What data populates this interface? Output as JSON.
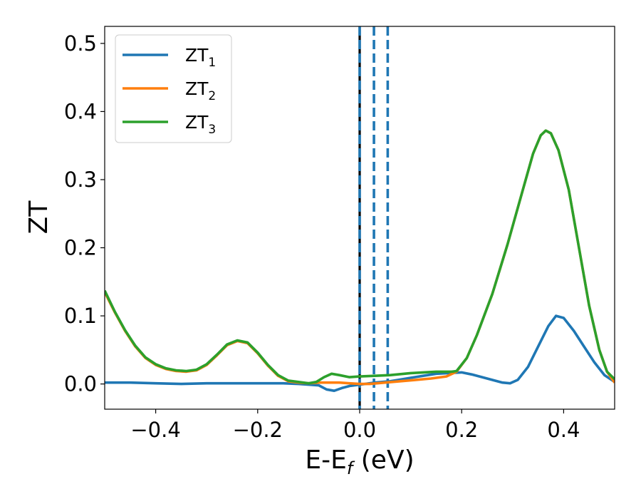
{
  "chart_data": {
    "type": "line",
    "title": "",
    "xlabel": {
      "main": "E-E",
      "sub": "f",
      "suffix": " (eV)"
    },
    "ylabel": "ZT",
    "xlim": [
      -0.5,
      0.5
    ],
    "ylim": [
      -0.037,
      0.525
    ],
    "xticks": [
      -0.4,
      -0.2,
      0.0,
      0.2,
      0.4
    ],
    "xtick_labels": [
      "−0.4",
      "−0.2",
      "0.0",
      "0.2",
      "0.4"
    ],
    "yticks": [
      0.0,
      0.1,
      0.2,
      0.3,
      0.4,
      0.5
    ],
    "ytick_labels": [
      "0.0",
      "0.1",
      "0.2",
      "0.3",
      "0.4",
      "0.5"
    ],
    "grid": false,
    "legend_position": "top-left",
    "series": [
      {
        "name": "ZT",
        "name_sub": "1",
        "color": "#1f77b4",
        "points": [
          [
            -0.5,
            0.002
          ],
          [
            -0.45,
            0.002
          ],
          [
            -0.4,
            0.001
          ],
          [
            -0.35,
            0.0
          ],
          [
            -0.3,
            0.001
          ],
          [
            -0.25,
            0.001
          ],
          [
            -0.2,
            0.001
          ],
          [
            -0.15,
            0.001
          ],
          [
            -0.12,
            0.0
          ],
          [
            -0.1,
            -0.001
          ],
          [
            -0.08,
            -0.002
          ],
          [
            -0.065,
            -0.008
          ],
          [
            -0.05,
            -0.01
          ],
          [
            -0.035,
            -0.006
          ],
          [
            -0.02,
            -0.003
          ],
          [
            0.0,
            -0.001
          ],
          [
            0.03,
            0.002
          ],
          [
            0.06,
            0.004
          ],
          [
            0.1,
            0.009
          ],
          [
            0.15,
            0.015
          ],
          [
            0.2,
            0.017
          ],
          [
            0.22,
            0.014
          ],
          [
            0.25,
            0.008
          ],
          [
            0.28,
            0.002
          ],
          [
            0.295,
            0.001
          ],
          [
            0.31,
            0.006
          ],
          [
            0.33,
            0.025
          ],
          [
            0.35,
            0.055
          ],
          [
            0.37,
            0.085
          ],
          [
            0.385,
            0.1
          ],
          [
            0.4,
            0.097
          ],
          [
            0.42,
            0.078
          ],
          [
            0.44,
            0.055
          ],
          [
            0.46,
            0.032
          ],
          [
            0.48,
            0.013
          ],
          [
            0.5,
            0.003
          ]
        ]
      },
      {
        "name": "ZT",
        "name_sub": "2",
        "color": "#ff7f0e",
        "points": [
          [
            -0.5,
            0.135
          ],
          [
            -0.48,
            0.105
          ],
          [
            -0.46,
            0.078
          ],
          [
            -0.44,
            0.055
          ],
          [
            -0.42,
            0.038
          ],
          [
            -0.4,
            0.028
          ],
          [
            -0.38,
            0.022
          ],
          [
            -0.36,
            0.019
          ],
          [
            -0.34,
            0.018
          ],
          [
            -0.32,
            0.02
          ],
          [
            -0.3,
            0.028
          ],
          [
            -0.28,
            0.042
          ],
          [
            -0.26,
            0.057
          ],
          [
            -0.24,
            0.063
          ],
          [
            -0.22,
            0.06
          ],
          [
            -0.2,
            0.045
          ],
          [
            -0.18,
            0.027
          ],
          [
            -0.16,
            0.012
          ],
          [
            -0.14,
            0.004
          ],
          [
            -0.12,
            0.002
          ],
          [
            -0.1,
            0.001
          ],
          [
            -0.08,
            0.002
          ],
          [
            -0.06,
            0.002
          ],
          [
            -0.04,
            0.002
          ],
          [
            -0.02,
            0.001
          ],
          [
            0.0,
            0.0
          ],
          [
            0.02,
            0.0
          ],
          [
            0.05,
            0.002
          ],
          [
            0.08,
            0.004
          ],
          [
            0.11,
            0.006
          ],
          [
            0.14,
            0.008
          ],
          [
            0.17,
            0.011
          ],
          [
            0.19,
            0.018
          ],
          [
            0.21,
            0.038
          ],
          [
            0.23,
            0.072
          ],
          [
            0.26,
            0.132
          ],
          [
            0.29,
            0.205
          ],
          [
            0.32,
            0.285
          ],
          [
            0.34,
            0.338
          ],
          [
            0.355,
            0.365
          ],
          [
            0.365,
            0.372
          ],
          [
            0.375,
            0.368
          ],
          [
            0.39,
            0.343
          ],
          [
            0.41,
            0.285
          ],
          [
            0.43,
            0.2
          ],
          [
            0.45,
            0.115
          ],
          [
            0.47,
            0.05
          ],
          [
            0.485,
            0.018
          ],
          [
            0.5,
            0.002
          ]
        ]
      },
      {
        "name": "ZT",
        "name_sub": "3",
        "color": "#2ca02c",
        "points": [
          [
            -0.5,
            0.137
          ],
          [
            -0.48,
            0.106
          ],
          [
            -0.46,
            0.079
          ],
          [
            -0.44,
            0.056
          ],
          [
            -0.42,
            0.039
          ],
          [
            -0.4,
            0.029
          ],
          [
            -0.38,
            0.023
          ],
          [
            -0.36,
            0.02
          ],
          [
            -0.34,
            0.019
          ],
          [
            -0.32,
            0.021
          ],
          [
            -0.3,
            0.029
          ],
          [
            -0.28,
            0.043
          ],
          [
            -0.26,
            0.058
          ],
          [
            -0.24,
            0.064
          ],
          [
            -0.22,
            0.061
          ],
          [
            -0.2,
            0.046
          ],
          [
            -0.18,
            0.028
          ],
          [
            -0.16,
            0.013
          ],
          [
            -0.14,
            0.005
          ],
          [
            -0.12,
            0.003
          ],
          [
            -0.1,
            0.001
          ],
          [
            -0.085,
            0.003
          ],
          [
            -0.07,
            0.01
          ],
          [
            -0.055,
            0.015
          ],
          [
            -0.04,
            0.013
          ],
          [
            -0.02,
            0.01
          ],
          [
            0.0,
            0.011
          ],
          [
            0.03,
            0.012
          ],
          [
            0.06,
            0.013
          ],
          [
            0.1,
            0.016
          ],
          [
            0.15,
            0.018
          ],
          [
            0.18,
            0.018
          ],
          [
            0.19,
            0.019
          ],
          [
            0.21,
            0.038
          ],
          [
            0.23,
            0.072
          ],
          [
            0.26,
            0.132
          ],
          [
            0.29,
            0.205
          ],
          [
            0.32,
            0.285
          ],
          [
            0.34,
            0.338
          ],
          [
            0.355,
            0.365
          ],
          [
            0.365,
            0.372
          ],
          [
            0.375,
            0.368
          ],
          [
            0.39,
            0.343
          ],
          [
            0.41,
            0.285
          ],
          [
            0.43,
            0.2
          ],
          [
            0.45,
            0.115
          ],
          [
            0.47,
            0.05
          ],
          [
            0.485,
            0.018
          ],
          [
            0.5,
            0.007
          ]
        ]
      }
    ],
    "vertical_lines": [
      {
        "x": 0.0,
        "style": "solid",
        "color": "#000000"
      },
      {
        "x": 0.0,
        "style": "dashed",
        "color": "#1f77b4"
      },
      {
        "x": 0.028,
        "style": "dashed",
        "color": "#1f77b4"
      },
      {
        "x": 0.055,
        "style": "dashed",
        "color": "#1f77b4"
      }
    ]
  }
}
